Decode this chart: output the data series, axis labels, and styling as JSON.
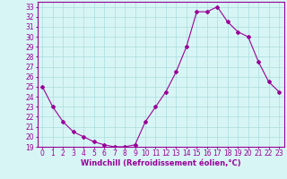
{
  "x": [
    0,
    1,
    2,
    3,
    4,
    5,
    6,
    7,
    8,
    9,
    10,
    11,
    12,
    13,
    14,
    15,
    16,
    17,
    18,
    19,
    20,
    21,
    22,
    23
  ],
  "y": [
    25.0,
    23.0,
    21.5,
    20.5,
    20.0,
    19.5,
    19.2,
    19.0,
    19.0,
    19.2,
    21.5,
    23.0,
    24.5,
    26.5,
    29.0,
    32.5,
    32.5,
    33.0,
    31.5,
    30.5,
    30.0,
    27.5,
    25.5,
    24.5
  ],
  "line_color": "#990099",
  "marker": "D",
  "marker_size": 2,
  "bg_color": "#d8f5f5",
  "grid_color": "#aadddd",
  "xlabel": "Windchill (Refroidissement éolien,°C)",
  "xlabel_fontsize": 6.0,
  "tick_fontsize": 5.5,
  "ylim": [
    19,
    33.5
  ],
  "xlim": [
    -0.5,
    23.5
  ],
  "yticks": [
    19,
    20,
    21,
    22,
    23,
    24,
    25,
    26,
    27,
    28,
    29,
    30,
    31,
    32,
    33
  ],
  "xticks": [
    0,
    1,
    2,
    3,
    4,
    5,
    6,
    7,
    8,
    9,
    10,
    11,
    12,
    13,
    14,
    15,
    16,
    17,
    18,
    19,
    20,
    21,
    22,
    23
  ]
}
